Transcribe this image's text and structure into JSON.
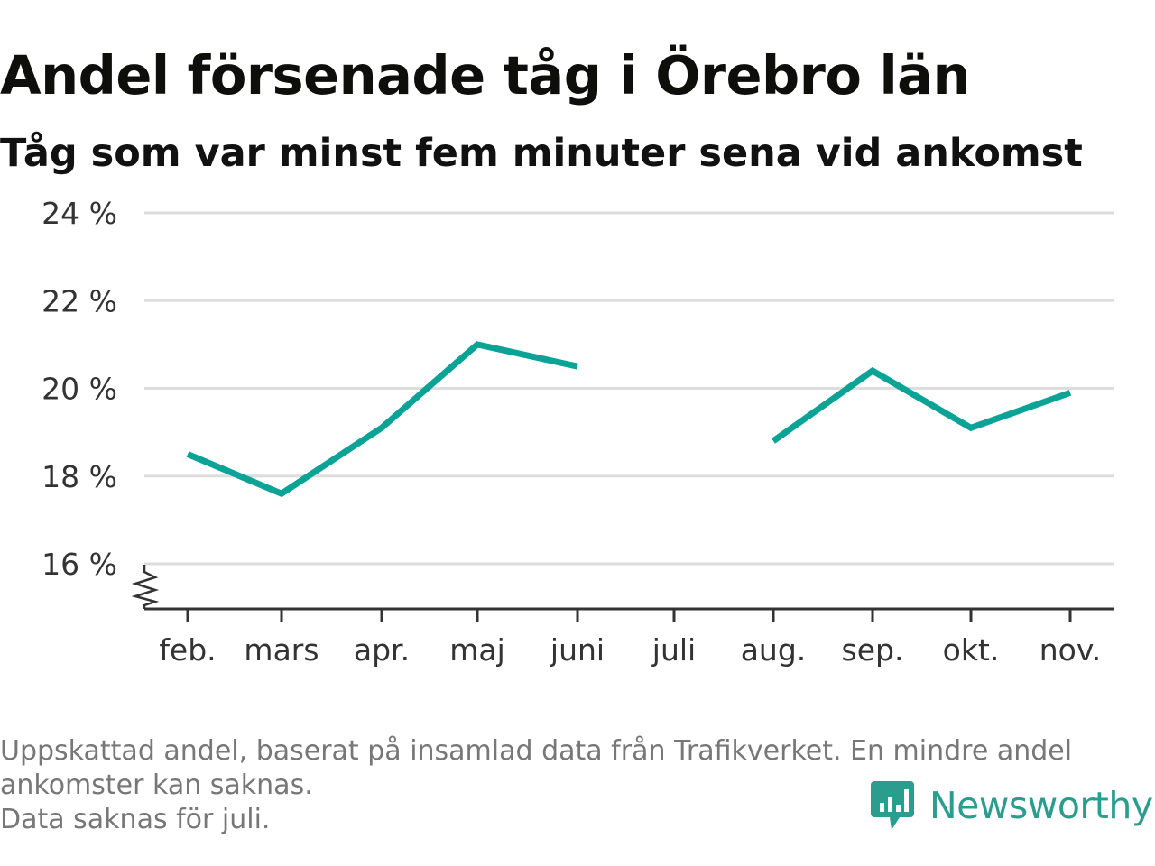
{
  "title": "Andel försenade tåg i Örebro län",
  "subtitle": "Tåg som var minst fem minuter sena vid ankomst",
  "footnote": {
    "line1": "Uppskattad andel, baserat på insamlad data från Trafikverket. En mindre andel ankomster kan saknas.",
    "line2": "Data saknas för juli."
  },
  "logo": {
    "text": "Newsworthy",
    "icon": "newsworthy-bar-chart-icon"
  },
  "colors": {
    "line": "#0aa396",
    "grid": "#dddddd",
    "axis": "#333333",
    "brand": "#2a9d8f",
    "footnote": "#777777"
  },
  "chart_data": {
    "type": "line",
    "title": "Andel försenade tåg i Örebro län",
    "subtitle": "Tåg som var minst fem minuter sena vid ankomst",
    "categories": [
      "feb.",
      "mars",
      "apr.",
      "maj",
      "juni",
      "juli",
      "aug.",
      "sep.",
      "okt.",
      "nov."
    ],
    "series": [
      {
        "values": [
          18.5,
          17.6,
          19.1,
          21.0,
          20.5,
          null,
          18.8,
          20.4,
          19.1,
          19.9
        ]
      }
    ],
    "y_ticks": [
      16,
      18,
      20,
      22,
      24
    ],
    "y_tick_labels": [
      "16 %",
      "18 %",
      "20 %",
      "22 %",
      "24 %"
    ],
    "ylim": [
      15,
      24
    ],
    "y_axis_break": true,
    "grid": true,
    "legend": "none"
  }
}
